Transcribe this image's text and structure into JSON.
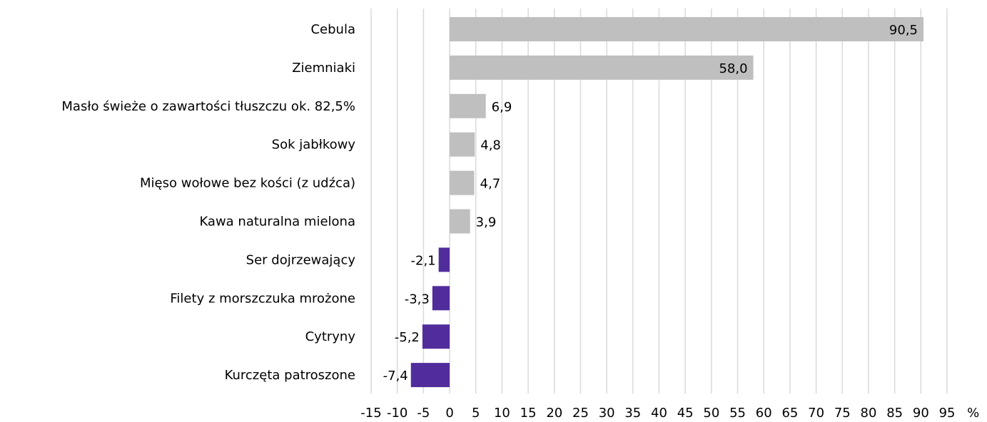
{
  "chart_data": {
    "type": "barh",
    "categories": [
      "Cebula",
      "Ziemniaki",
      "Masło świeże o zawartości tłuszczu ok. 82,5%",
      "Sok jabłkowy",
      "Mięso wołowe bez kości (z udźca)",
      "Kawa naturalna mielona",
      "Ser dojrzewający",
      "Filety z morszczuka mrożone",
      "Cytryny",
      "Kurczęta patroszone"
    ],
    "values": [
      90.5,
      58.0,
      6.9,
      4.8,
      4.7,
      3.9,
      -2.1,
      -3.3,
      -5.2,
      -7.4
    ],
    "value_labels": [
      "90,5",
      "58,0",
      "6,9",
      "4,8",
      "4,7",
      "3,9",
      "-2,1",
      "-3,3",
      "-5,2",
      "-7,4"
    ],
    "colors": [
      "#bfbfbf",
      "#bfbfbf",
      "#bfbfbf",
      "#bfbfbf",
      "#bfbfbf",
      "#bfbfbf",
      "#512d9c",
      "#512d9c",
      "#512d9c",
      "#512d9c"
    ],
    "xlim": [
      -15,
      100
    ],
    "xticks": [
      -15,
      -10,
      -5,
      0,
      5,
      10,
      15,
      20,
      25,
      30,
      35,
      40,
      45,
      50,
      55,
      60,
      65,
      70,
      75,
      80,
      85,
      90,
      95,
      {
        "value": 100,
        "label": "%"
      }
    ],
    "grid": true
  }
}
